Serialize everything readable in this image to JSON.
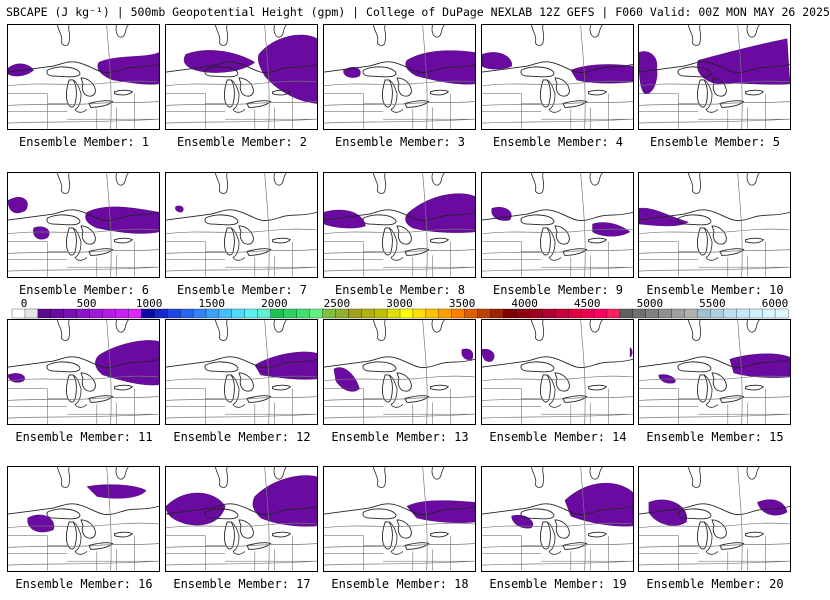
{
  "header": {
    "title": "SBCAPE (J kg⁻¹) | 500mb Geopotential Height (gpm) | College of DuPage NEXLAB 12Z GEFS | F060 Valid: 00Z MON MAY 26 2025"
  },
  "panels": [
    {
      "caption": "Ensemble Member: 1"
    },
    {
      "caption": "Ensemble Member: 2"
    },
    {
      "caption": "Ensemble Member: 3"
    },
    {
      "caption": "Ensemble Member: 4"
    },
    {
      "caption": "Ensemble Member: 5"
    },
    {
      "caption": "Ensemble Member: 6"
    },
    {
      "caption": "Ensemble Member: 7"
    },
    {
      "caption": "Ensemble Member: 8"
    },
    {
      "caption": "Ensemble Member: 9"
    },
    {
      "caption": "Ensemble Member: 10"
    },
    {
      "caption": "Ensemble Member: 11"
    },
    {
      "caption": "Ensemble Member: 12"
    },
    {
      "caption": "Ensemble Member: 13"
    },
    {
      "caption": "Ensemble Member: 14"
    },
    {
      "caption": "Ensemble Member: 15"
    },
    {
      "caption": "Ensemble Member: 16"
    },
    {
      "caption": "Ensemble Member: 17"
    },
    {
      "caption": "Ensemble Member: 18"
    },
    {
      "caption": "Ensemble Member: 19"
    },
    {
      "caption": "Ensemble Member: 20"
    }
  ],
  "colorbar": {
    "labels": [
      "0",
      "500",
      "1000",
      "1500",
      "2000",
      "2500",
      "3000",
      "3500",
      "4000",
      "4500",
      "5000",
      "5500",
      "6000"
    ],
    "colors": [
      "#ffffff",
      "#e6e6e6",
      "#5a0a8c",
      "#6a0aa0",
      "#7a10b4",
      "#8c14c8",
      "#a018d8",
      "#b41ce6",
      "#c820f0",
      "#dc28f8",
      "#0a0aa0",
      "#1428c8",
      "#1e46e6",
      "#2864f0",
      "#3282f8",
      "#3ca0fa",
      "#46befa",
      "#50dcfa",
      "#5af0f0",
      "#60f0d0",
      "#20c050",
      "#30d060",
      "#40e070",
      "#60f080",
      "#80c040",
      "#90b030",
      "#a0a020",
      "#b0b010",
      "#c0c000",
      "#e0e000",
      "#ffff00",
      "#ffe000",
      "#ffc000",
      "#ffa000",
      "#ff8000",
      "#e06000",
      "#c04000",
      "#a02000",
      "#800000",
      "#900010",
      "#a00020",
      "#b00030",
      "#c80040",
      "#e00040",
      "#f00050",
      "#ff0060",
      "#ff2060",
      "#606060",
      "#707070",
      "#808080",
      "#909090",
      "#a0a0a0",
      "#b0b0b0",
      "#a0c0d0",
      "#b0d0e0",
      "#c0e0f0",
      "#c8e8f8",
      "#d0f0ff",
      "#d8f4ff",
      "#e0f8ff"
    ]
  }
}
